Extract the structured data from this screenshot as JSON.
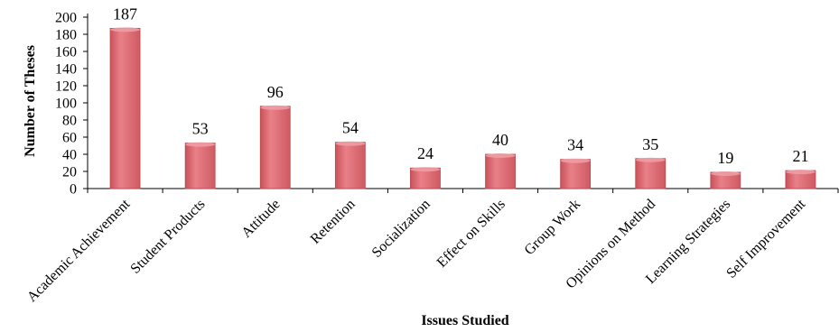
{
  "chart_data": {
    "type": "bar",
    "title": "",
    "xlabel": "Issues Studied",
    "ylabel": "Number of Theses",
    "categories": [
      "Academic Achievement",
      "Student Products",
      "Attitude",
      "Retention",
      "Socialization",
      "Effect on Skills",
      "Group Work",
      "Opinions on Method",
      "Learning Strategies",
      "Self Improvement"
    ],
    "values": [
      187,
      53,
      96,
      54,
      24,
      40,
      34,
      35,
      19,
      21
    ],
    "ylim": [
      0,
      200
    ],
    "yticks": [
      0,
      20,
      40,
      60,
      80,
      100,
      120,
      140,
      160,
      180,
      200
    ],
    "grid": false,
    "legend": "none",
    "bar_color": "#d9636b",
    "bar_highlight": "#f0a0a6",
    "bar_edge": "#b9474f"
  }
}
